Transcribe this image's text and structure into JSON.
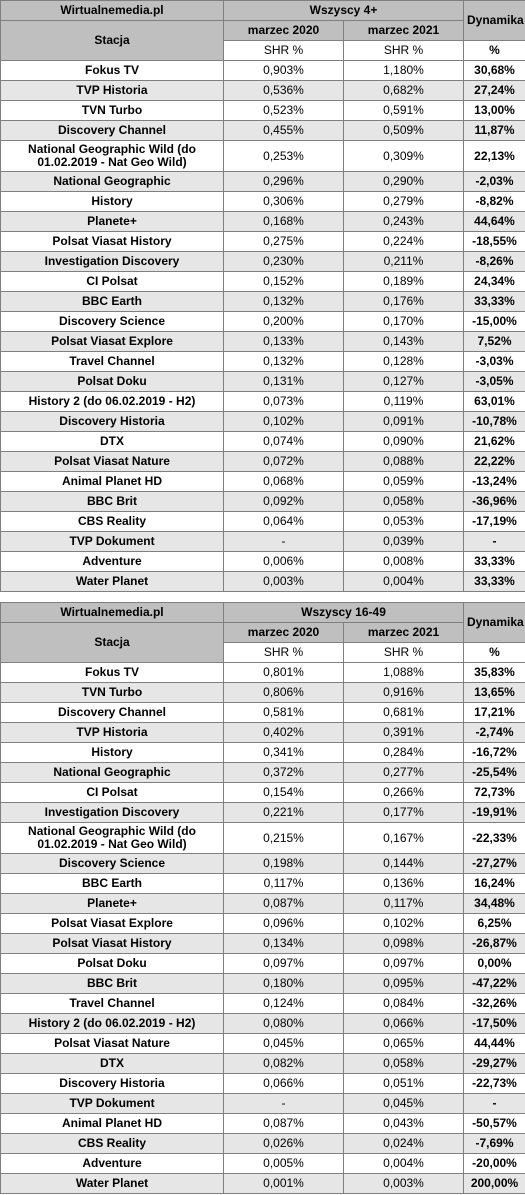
{
  "tables": [
    {
      "site": "Wirtualnemedia.pl",
      "group": "Wszyscy 4+",
      "dynamics": "Dynamika",
      "station": "Stacja",
      "period1": "marzec 2020",
      "period2": "marzec 2021",
      "shr1": "SHR %",
      "shr2": "SHR %",
      "pct": "%",
      "rows": [
        [
          "Fokus TV",
          "0,903%",
          "1,180%",
          "30,68%"
        ],
        [
          "TVP Historia",
          "0,536%",
          "0,682%",
          "27,24%"
        ],
        [
          "TVN Turbo",
          "0,523%",
          "0,591%",
          "13,00%"
        ],
        [
          "Discovery Channel",
          "0,455%",
          "0,509%",
          "11,87%"
        ],
        [
          "National Geographic Wild (do 01.02.2019 - Nat Geo Wild)",
          "0,253%",
          "0,309%",
          "22,13%"
        ],
        [
          "National Geographic",
          "0,296%",
          "0,290%",
          "-2,03%"
        ],
        [
          "History",
          "0,306%",
          "0,279%",
          "-8,82%"
        ],
        [
          "Planete+",
          "0,168%",
          "0,243%",
          "44,64%"
        ],
        [
          "Polsat Viasat History",
          "0,275%",
          "0,224%",
          "-18,55%"
        ],
        [
          "Investigation Discovery",
          "0,230%",
          "0,211%",
          "-8,26%"
        ],
        [
          "CI Polsat",
          "0,152%",
          "0,189%",
          "24,34%"
        ],
        [
          "BBC Earth",
          "0,132%",
          "0,176%",
          "33,33%"
        ],
        [
          "Discovery Science",
          "0,200%",
          "0,170%",
          "-15,00%"
        ],
        [
          "Polsat Viasat Explore",
          "0,133%",
          "0,143%",
          "7,52%"
        ],
        [
          "Travel Channel",
          "0,132%",
          "0,128%",
          "-3,03%"
        ],
        [
          "Polsat Doku",
          "0,131%",
          "0,127%",
          "-3,05%"
        ],
        [
          "History 2 (do 06.02.2019 - H2)",
          "0,073%",
          "0,119%",
          "63,01%"
        ],
        [
          "Discovery Historia",
          "0,102%",
          "0,091%",
          "-10,78%"
        ],
        [
          "DTX",
          "0,074%",
          "0,090%",
          "21,62%"
        ],
        [
          "Polsat Viasat Nature",
          "0,072%",
          "0,088%",
          "22,22%"
        ],
        [
          "Animal Planet HD",
          "0,068%",
          "0,059%",
          "-13,24%"
        ],
        [
          "BBC Brit",
          "0,092%",
          "0,058%",
          "-36,96%"
        ],
        [
          "CBS Reality",
          "0,064%",
          "0,053%",
          "-17,19%"
        ],
        [
          "TVP Dokument",
          "-",
          "0,039%",
          "-"
        ],
        [
          "Adventure",
          "0,006%",
          "0,008%",
          "33,33%"
        ],
        [
          "Water Planet",
          "0,003%",
          "0,004%",
          "33,33%"
        ]
      ]
    },
    {
      "site": "Wirtualnemedia.pl",
      "group": "Wszyscy 16-49",
      "dynamics": "Dynamika",
      "station": "Stacja",
      "period1": "marzec 2020",
      "period2": "marzec 2021",
      "shr1": "SHR %",
      "shr2": "SHR %",
      "pct": "%",
      "rows": [
        [
          "Fokus TV",
          "0,801%",
          "1,088%",
          "35,83%"
        ],
        [
          "TVN Turbo",
          "0,806%",
          "0,916%",
          "13,65%"
        ],
        [
          "Discovery Channel",
          "0,581%",
          "0,681%",
          "17,21%"
        ],
        [
          "TVP Historia",
          "0,402%",
          "0,391%",
          "-2,74%"
        ],
        [
          "History",
          "0,341%",
          "0,284%",
          "-16,72%"
        ],
        [
          "National Geographic",
          "0,372%",
          "0,277%",
          "-25,54%"
        ],
        [
          "CI Polsat",
          "0,154%",
          "0,266%",
          "72,73%"
        ],
        [
          "Investigation Discovery",
          "0,221%",
          "0,177%",
          "-19,91%"
        ],
        [
          "National Geographic Wild (do 01.02.2019 - Nat Geo Wild)",
          "0,215%",
          "0,167%",
          "-22,33%"
        ],
        [
          "Discovery Science",
          "0,198%",
          "0,144%",
          "-27,27%"
        ],
        [
          "BBC Earth",
          "0,117%",
          "0,136%",
          "16,24%"
        ],
        [
          "Planete+",
          "0,087%",
          "0,117%",
          "34,48%"
        ],
        [
          "Polsat Viasat Explore",
          "0,096%",
          "0,102%",
          "6,25%"
        ],
        [
          "Polsat Viasat History",
          "0,134%",
          "0,098%",
          "-26,87%"
        ],
        [
          "Polsat Doku",
          "0,097%",
          "0,097%",
          "0,00%"
        ],
        [
          "BBC Brit",
          "0,180%",
          "0,095%",
          "-47,22%"
        ],
        [
          "Travel Channel",
          "0,124%",
          "0,084%",
          "-32,26%"
        ],
        [
          "History 2 (do 06.02.2019 - H2)",
          "0,080%",
          "0,066%",
          "-17,50%"
        ],
        [
          "Polsat Viasat Nature",
          "0,045%",
          "0,065%",
          "44,44%"
        ],
        [
          "DTX",
          "0,082%",
          "0,058%",
          "-29,27%"
        ],
        [
          "Discovery Historia",
          "0,066%",
          "0,051%",
          "-22,73%"
        ],
        [
          "TVP Dokument",
          "-",
          "0,045%",
          "-"
        ],
        [
          "Animal Planet HD",
          "0,087%",
          "0,043%",
          "-50,57%"
        ],
        [
          "CBS Reality",
          "0,026%",
          "0,024%",
          "-7,69%"
        ],
        [
          "Adventure",
          "0,005%",
          "0,004%",
          "-20,00%"
        ],
        [
          "Water Planet",
          "0,001%",
          "0,003%",
          "200,00%"
        ]
      ]
    }
  ]
}
